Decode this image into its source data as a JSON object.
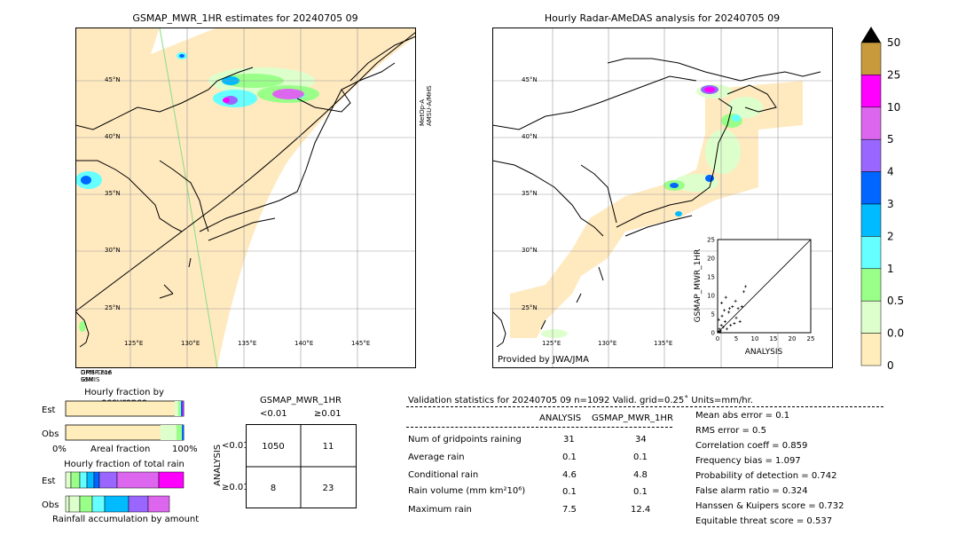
{
  "left_map": {
    "title": "GSMAP_MWR_1HR estimates for 20240705 09",
    "satellite_label": "MetOp-A\nAMSU-A/MHS",
    "lat_labels": [
      "45°N",
      "40°N",
      "35°N",
      "30°N",
      "25°N"
    ],
    "lon_labels": [
      "125°E",
      "130°E",
      "135°E",
      "140°E",
      "145°E"
    ],
    "corner_labels": [
      "GPM-Core",
      "DMSP-F16",
      "GMI",
      "SSMIS"
    ]
  },
  "right_map": {
    "title": "Hourly Radar-AMeDAS analysis for 20240705 09",
    "provider": "Provided by JWA/JMA",
    "lat_labels": [
      "45°N",
      "40°N",
      "35°N",
      "30°N",
      "25°N"
    ],
    "lon_labels": [
      "125°E",
      "130°E",
      "135°E"
    ]
  },
  "colorbar": {
    "levels": [
      "50",
      "25",
      "10",
      "5",
      "4",
      "3",
      "2",
      "1",
      "0.5",
      "0.01",
      "0"
    ],
    "colors": [
      "#c89a3c",
      "#ff00ff",
      "#dd66ee",
      "#9966ff",
      "#0066ff",
      "#00bbff",
      "#66ffff",
      "#99ff88",
      "#ddffcc",
      "#ffeebb"
    ]
  },
  "scatter": {
    "xlabel": "ANALYSIS",
    "ylabel": "GSMAP_MWR_1HR",
    "ticks": [
      "0",
      "5",
      "10",
      "15",
      "20",
      "25"
    ]
  },
  "chart_data": {
    "type": "scatter",
    "x": [
      0.2,
      0.5,
      0.8,
      1.0,
      1.2,
      1.5,
      1.8,
      2.0,
      2.5,
      3.0,
      3.5,
      4.0,
      4.5,
      5.0,
      5.5,
      6.0,
      7.0,
      7.5,
      0.3,
      0.6,
      1.1,
      2.2,
      3.2,
      4.8,
      6.5
    ],
    "y": [
      0.3,
      1.0,
      0.5,
      2.0,
      4.5,
      1.5,
      6.0,
      3.0,
      1.0,
      5.5,
      2.0,
      7.0,
      2.5,
      4.0,
      6.5,
      3.0,
      11.0,
      12.4,
      3.5,
      0.2,
      8.0,
      9.5,
      6.5,
      8.5,
      7.0
    ],
    "xlim": [
      0,
      25
    ],
    "ylim": [
      0,
      25
    ],
    "xlabel": "ANALYSIS",
    "ylabel": "GSMAP_MWR_1HR"
  },
  "occurrence": {
    "title": "Hourly fraction by occurence",
    "rows": [
      "Est",
      "Obs"
    ],
    "axis_left": "0%",
    "axis_mid": "Areal fraction",
    "axis_right": "100%"
  },
  "total_rain": {
    "title": "Hourly fraction of total rain",
    "rows": [
      "Est",
      "Obs"
    ],
    "footer": "Rainfall accumulation by amount"
  },
  "contingency": {
    "title": "GSMAP_MWR_1HR",
    "col_lt": "<0.01",
    "col_ge": "≥0.01",
    "row_axis": "ANALYSIS",
    "row_lt": "<0.01",
    "row_ge": "≥0.01",
    "cells": [
      "1050",
      "11",
      "8",
      "23"
    ]
  },
  "validation": {
    "header": "Validation statistics for 20240705 09  n=1092 Valid. grid=0.25˚ Units=mm/hr.",
    "col_analysis": "ANALYSIS",
    "col_gsmap": "GSMAP_MWR_1HR",
    "rows": [
      {
        "label": "Num of gridpoints raining",
        "analysis": "31",
        "gsmap": "34"
      },
      {
        "label": "Average rain",
        "analysis": "0.1",
        "gsmap": "0.1"
      },
      {
        "label": "Conditional rain",
        "analysis": "4.6",
        "gsmap": "4.8"
      },
      {
        "label": "Rain volume (mm km²10⁶)",
        "analysis": "0.1",
        "gsmap": "0.1"
      },
      {
        "label": "Maximum rain",
        "analysis": "7.5",
        "gsmap": "12.4"
      }
    ],
    "scores": [
      "Mean abs error =    0.1",
      "RMS error =    0.5",
      "Correlation coeff =  0.859",
      "Frequency bias =  1.097",
      "Probability of detection =  0.742",
      "False alarm ratio =  0.324",
      "Hanssen & Kuipers score =  0.732",
      "Equitable threat score =  0.537"
    ]
  }
}
